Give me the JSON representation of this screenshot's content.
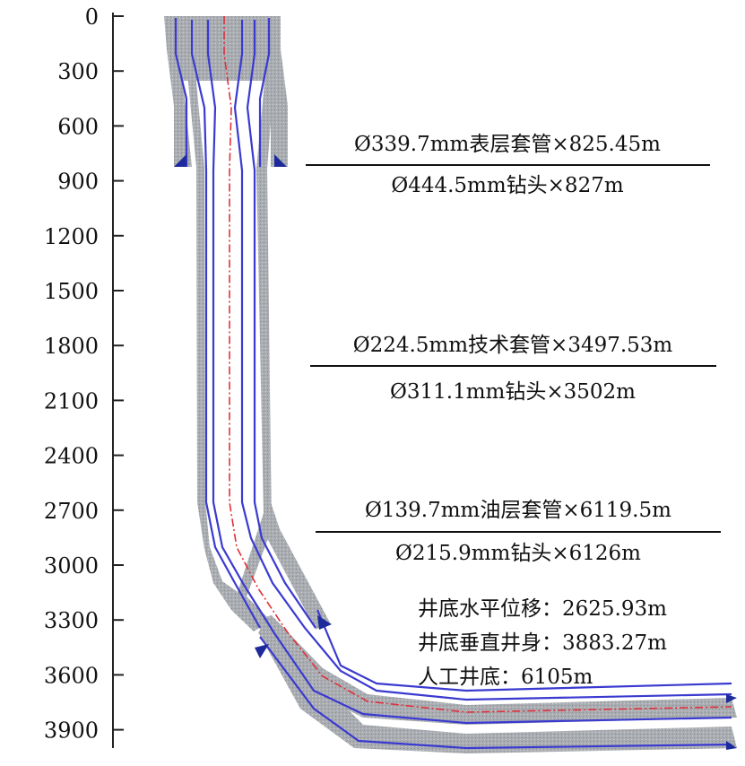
{
  "depth_axis": {
    "ticks": [
      "0",
      "300",
      "600",
      "900",
      "1200",
      "1500",
      "1800",
      "2100",
      "2400",
      "2700",
      "3000",
      "3300",
      "3600",
      "3900"
    ]
  },
  "casing_program": [
    {
      "casing": "Ø339.7mm表层套管×825.45m",
      "bit": "Ø444.5mm钻头×827m"
    },
    {
      "casing": "Ø224.5mm技术套管×3497.53m",
      "bit": "Ø311.1mm钻头×3502m"
    },
    {
      "casing": "Ø139.7mm油层套管×6119.5m",
      "bit": "Ø215.9mm钻头×6126m"
    }
  ],
  "well_summary": {
    "horizontal_displacement": "井底水平位移：2625.93m",
    "vertical_depth": "井底垂直井身：3883.27m",
    "artificial_bottom": "人工井底：6105m"
  },
  "colors": {
    "cement": "#a9acb1",
    "casing_line": "#3a3ad0",
    "centerline": "#e0303a",
    "casing_shoe": "#1d2a9c",
    "axis": "#222222"
  }
}
